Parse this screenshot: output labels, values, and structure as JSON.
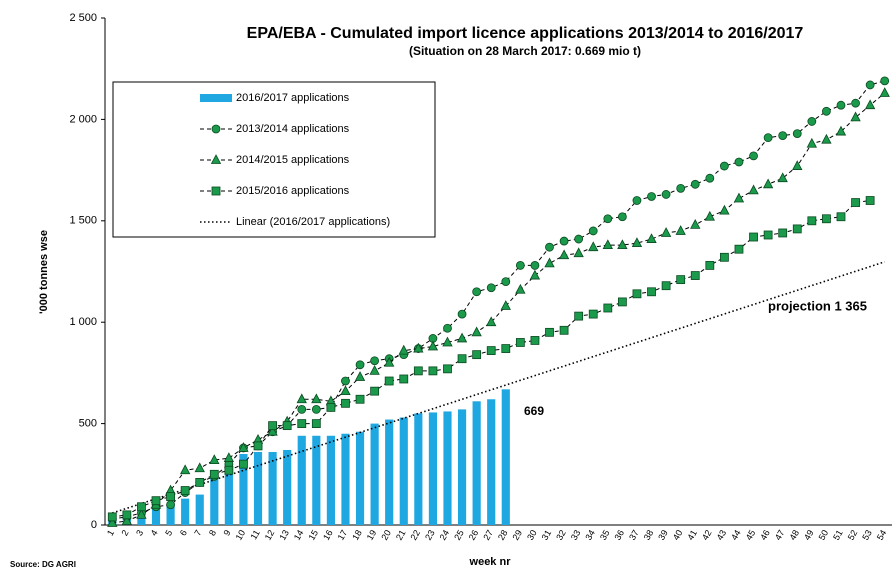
{
  "chart_data": {
    "type": "bar_line",
    "title": "EPA/EBA  -  Cumulated import licence applications  2013/2014  to 2016/2017",
    "subtitle": "(Situation on 28 March 2017: 0.669 mio t)",
    "y_label": "'000 tonnes wse",
    "x_label": "week nr",
    "source": "Source: DG AGRI",
    "trend_label": "Linear (2016/2017 applications)",
    "annotations": [
      {
        "text": "669"
      },
      {
        "text": "projection  1 365"
      }
    ],
    "categories": [
      "1",
      "2",
      "3",
      "4",
      "5",
      "6",
      "7",
      "8",
      "9",
      "10",
      "11",
      "12",
      "13",
      "14",
      "15",
      "16",
      "17",
      "18",
      "19",
      "20",
      "21",
      "22",
      "23",
      "24",
      "25",
      "26",
      "27",
      "28",
      "29",
      "30",
      "31",
      "32",
      "33",
      "34",
      "35",
      "36",
      "37",
      "38",
      "39",
      "40",
      "41",
      "42",
      "43",
      "44",
      "45",
      "46",
      "47",
      "48",
      "49",
      "50",
      "51",
      "52",
      "53",
      "54"
    ],
    "ylim": [
      0,
      2500
    ],
    "yticks": [
      0,
      500,
      {
        "value": 1000,
        "label": "1 000"
      },
      {
        "value": 1500,
        "label": "1 500"
      },
      {
        "value": 2000,
        "label": "2 000"
      },
      {
        "value": 2500,
        "label": "2 500"
      }
    ],
    "series": [
      {
        "name": "2016/2017 applications",
        "kind": "bar",
        "color": "#1ea7e1",
        "values": [
          30,
          40,
          60,
          85,
          110,
          130,
          150,
          230,
          300,
          350,
          360,
          360,
          370,
          440,
          440,
          440,
          450,
          460,
          500,
          520,
          530,
          550,
          555,
          560,
          570,
          610,
          620,
          669,
          null,
          null,
          null,
          null,
          null,
          null,
          null,
          null,
          null,
          null,
          null,
          null,
          null,
          null,
          null,
          null,
          null,
          null,
          null,
          null,
          null,
          null,
          null,
          null,
          null,
          null
        ]
      },
      {
        "name": "2013/2014 applications",
        "kind": "line",
        "marker": "circle",
        "color": "#1a9a4a",
        "values": [
          30,
          40,
          60,
          90,
          100,
          160,
          210,
          240,
          300,
          380,
          390,
          460,
          490,
          570,
          570,
          580,
          710,
          790,
          810,
          820,
          840,
          870,
          920,
          970,
          1040,
          1150,
          1170,
          1200,
          1280,
          1280,
          1370,
          1400,
          1410,
          1450,
          1510,
          1520,
          1600,
          1620,
          1630,
          1660,
          1680,
          1710,
          1770,
          1790,
          1820,
          1910,
          1920,
          1930,
          1990,
          2040,
          2070,
          2080,
          2170,
          2190
        ]
      },
      {
        "name": "2014/2015 applications",
        "kind": "line",
        "marker": "triangle",
        "color": "#1a9a4a",
        "values": [
          10,
          20,
          50,
          100,
          170,
          270,
          280,
          320,
          330,
          380,
          420,
          460,
          510,
          620,
          620,
          610,
          660,
          730,
          760,
          800,
          860,
          870,
          880,
          900,
          920,
          950,
          1000,
          1080,
          1160,
          1230,
          1290,
          1330,
          1340,
          1370,
          1380,
          1380,
          1390,
          1410,
          1440,
          1450,
          1480,
          1520,
          1550,
          1610,
          1650,
          1680,
          1710,
          1770,
          1880,
          1900,
          1940,
          2010,
          2070,
          2130
        ]
      },
      {
        "name": "2015/2016 applications",
        "kind": "line",
        "marker": "square",
        "color": "#1a9a4a",
        "values": [
          40,
          50,
          90,
          120,
          140,
          170,
          210,
          250,
          270,
          300,
          390,
          490,
          490,
          500,
          500,
          580,
          600,
          620,
          660,
          710,
          720,
          760,
          760,
          770,
          820,
          840,
          860,
          870,
          900,
          910,
          950,
          960,
          1030,
          1040,
          1070,
          1100,
          1140,
          1150,
          1180,
          1210,
          1230,
          1280,
          1320,
          1360,
          1420,
          1430,
          1440,
          1460,
          1500,
          1510,
          1520,
          1590,
          1600,
          null
        ]
      }
    ]
  }
}
